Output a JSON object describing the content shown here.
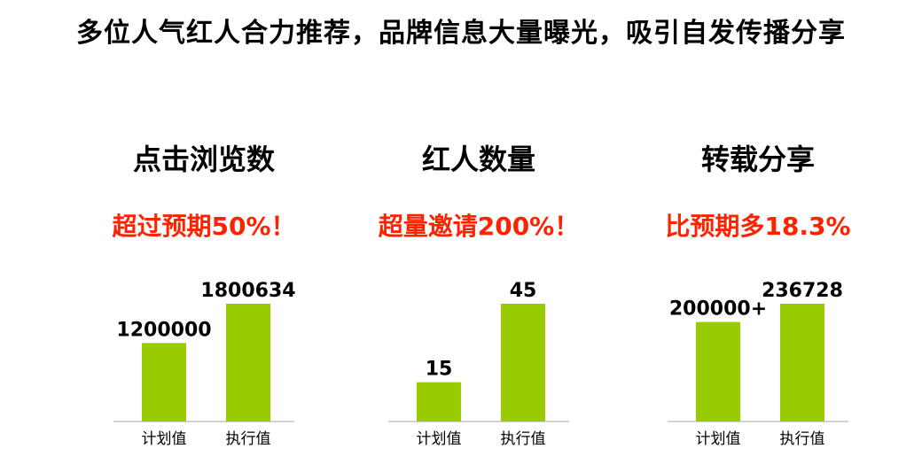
{
  "headline": "多位人气红人合力推荐，品牌信息大量曝光，吸引自发传播分享",
  "colors": {
    "bar": "#99cc00",
    "note": "#ff2200",
    "axis": "#aaaaaa",
    "text": "#000000"
  },
  "chart_data": [
    {
      "type": "bar",
      "title": "点击浏览数",
      "note": "超过预期50%！",
      "categories": [
        "计划值",
        "执行值"
      ],
      "values": [
        1200000,
        1800634
      ],
      "value_labels": [
        "1200000",
        "1800634"
      ],
      "ylim": [
        0,
        1800634
      ]
    },
    {
      "type": "bar",
      "title": "红人数量",
      "note": "超量邀请200%！",
      "categories": [
        "计划值",
        "执行值"
      ],
      "values": [
        15,
        45
      ],
      "value_labels": [
        "15",
        "45"
      ],
      "ylim": [
        0,
        45
      ]
    },
    {
      "type": "bar",
      "title": "转载分享",
      "note": "比预期多18.3%",
      "categories": [
        "计划值",
        "执行值"
      ],
      "values": [
        200000,
        236728
      ],
      "value_labels": [
        "200000+",
        "236728"
      ],
      "ylim": [
        0,
        236728
      ]
    }
  ]
}
